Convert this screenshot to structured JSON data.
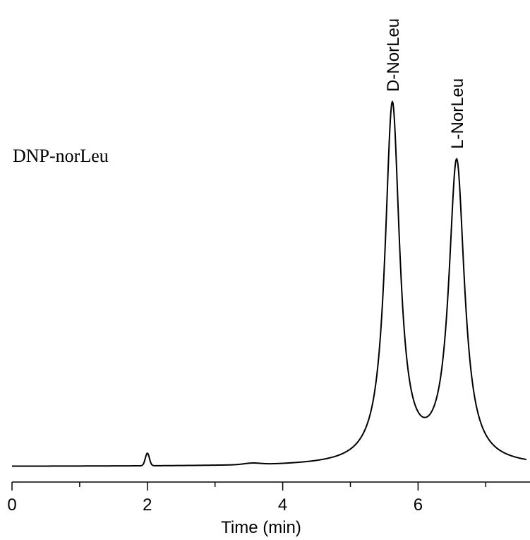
{
  "chart_data": {
    "type": "line",
    "title": "DNP-norLeu",
    "xlabel": "Time (min)",
    "ylabel": "",
    "xlim": [
      0,
      7.6
    ],
    "ylim": [
      0,
      1.0
    ],
    "x_ticks": [
      0,
      2,
      4,
      6
    ],
    "x_tick_labels": [
      "0",
      "2",
      "4",
      "6"
    ],
    "x_minor_ticks": [
      1,
      3,
      5,
      7
    ],
    "grid": false,
    "series": [
      {
        "peaks": [
          {
            "label": "",
            "rt": 2.0,
            "height": 0.035,
            "sigma": 0.03
          },
          {
            "label": "",
            "rt": 3.55,
            "height": 0.004,
            "sigma": 0.12
          },
          {
            "label": "D-NorLeu",
            "rt": 5.62,
            "height": 1.0,
            "sigma": 0.13
          },
          {
            "label": "L-NorLeu",
            "rt": 6.57,
            "height": 0.84,
            "sigma": 0.14
          }
        ]
      }
    ]
  }
}
